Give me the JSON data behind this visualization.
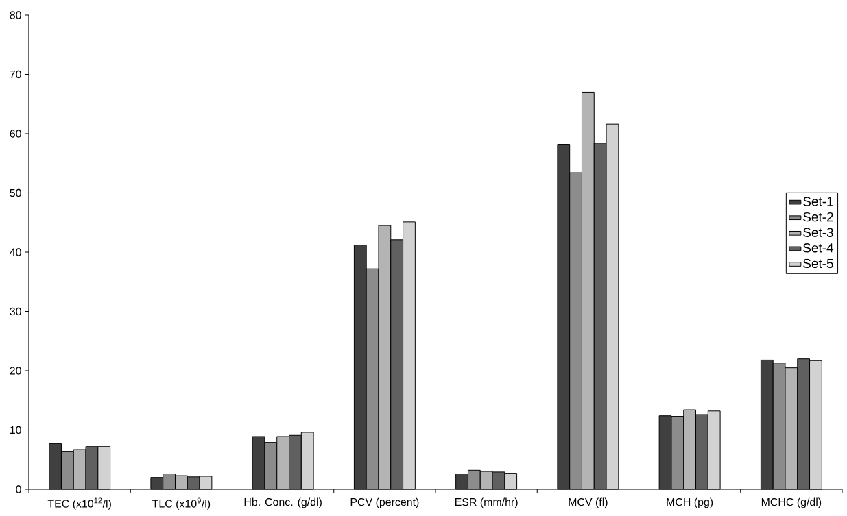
{
  "chart_data": {
    "type": "bar",
    "categories": [
      "TEC (x10$^{12}$/l)",
      "TLC (x10$^{9}$/l)",
      "Hb. Conc. (g/dl)",
      "PCV (percent)",
      "ESR (mm/hr)",
      "MCV (fl)",
      "MCH (pg)",
      "MCHC (g/dl)"
    ],
    "series": [
      {
        "name": "Set-1",
        "color": "#404040",
        "values": [
          7.7,
          2.0,
          8.9,
          41.2,
          2.6,
          58.2,
          12.4,
          21.8
        ]
      },
      {
        "name": "Set-2",
        "color": "#8c8c8c",
        "values": [
          6.4,
          2.6,
          7.9,
          37.2,
          3.2,
          53.4,
          12.3,
          21.3
        ]
      },
      {
        "name": "Set-3",
        "color": "#b4b4b4",
        "values": [
          6.7,
          2.3,
          8.9,
          44.5,
          3.0,
          67.0,
          13.4,
          20.5
        ]
      },
      {
        "name": "Set-4",
        "color": "#606060",
        "values": [
          7.2,
          2.1,
          9.1,
          42.1,
          2.9,
          58.4,
          12.6,
          22.0
        ]
      },
      {
        "name": "Set-5",
        "color": "#d2d2d2",
        "values": [
          7.2,
          2.2,
          9.6,
          45.1,
          2.7,
          61.6,
          13.2,
          21.7
        ]
      }
    ],
    "ylim": [
      0,
      80
    ],
    "yticks": [
      0,
      10,
      20,
      30,
      40,
      50,
      60,
      70,
      80
    ],
    "legend": "right",
    "grid": false
  }
}
